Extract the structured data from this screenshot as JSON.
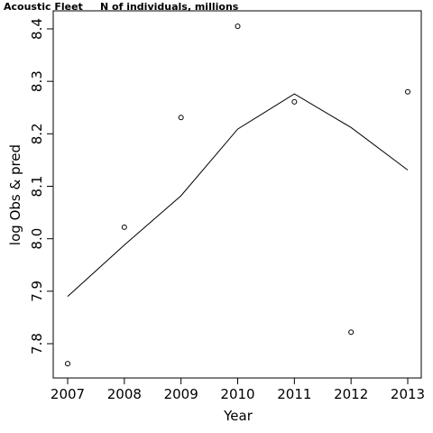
{
  "chart_data": {
    "type": "scatter",
    "title_left": "Acoustic Fleet",
    "title_right": "N of individuals, millions",
    "xlabel": "Year",
    "ylabel": "log Obs & pred",
    "xlim": [
      2007,
      2013
    ],
    "ylim": [
      7.76,
      8.41
    ],
    "x_ticks": [
      2007,
      2008,
      2009,
      2010,
      2011,
      2012,
      2013
    ],
    "y_ticks": [
      7.8,
      7.9,
      8.0,
      8.1,
      8.2,
      8.3,
      8.4
    ],
    "x_tick_labels": [
      "2007",
      "2008",
      "2009",
      "2010",
      "2011",
      "2012",
      "2013"
    ],
    "y_tick_labels": [
      "7.8",
      "7.9",
      "8.0",
      "8.1",
      "8.2",
      "8.3",
      "8.4"
    ],
    "grid": false,
    "series": [
      {
        "kind": "points",
        "marker": "open-circle",
        "x": [
          2007,
          2008,
          2009,
          2010,
          2011,
          2012,
          2013
        ],
        "values": [
          7.762,
          8.022,
          8.231,
          8.405,
          8.261,
          7.822,
          8.28
        ]
      },
      {
        "kind": "line",
        "x": [
          2007,
          2008,
          2009,
          2010,
          2011,
          2012,
          2013
        ],
        "values": [
          7.89,
          7.988,
          8.082,
          8.209,
          8.276,
          8.212,
          8.131
        ]
      }
    ]
  }
}
